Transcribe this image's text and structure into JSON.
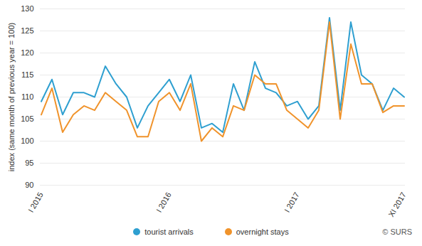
{
  "chart_data": {
    "type": "line",
    "y_label": "index (same month of previous year = 100)",
    "caption": "© SURS",
    "categories": [
      "I 2015",
      null,
      null,
      null,
      null,
      null,
      null,
      null,
      null,
      null,
      null,
      null,
      "I 2016",
      null,
      null,
      null,
      null,
      null,
      null,
      null,
      null,
      null,
      null,
      null,
      "I 2017",
      null,
      null,
      null,
      null,
      null,
      null,
      null,
      null,
      null,
      "XI 2017"
    ],
    "series": [
      {
        "name": "tourist arrivals",
        "color": "#2e9fd0",
        "values": [
          109,
          114,
          106,
          111,
          111,
          110,
          117,
          113,
          110,
          103,
          108,
          111,
          114,
          109,
          115,
          103,
          104,
          102,
          113,
          107,
          118,
          112,
          111,
          108,
          109,
          105,
          108,
          128,
          107,
          127,
          115,
          113,
          107,
          112,
          110
        ]
      },
      {
        "name": "overnight stays",
        "color": "#f0932b",
        "values": [
          106,
          112,
          102,
          106,
          108,
          107,
          111,
          109,
          107,
          101,
          101,
          109,
          111,
          107,
          113,
          100,
          103,
          101,
          108,
          107,
          115,
          113,
          113,
          107,
          105,
          103,
          107,
          127,
          105,
          122,
          113,
          113,
          106.5,
          108,
          108
        ]
      }
    ],
    "ylim": [
      90,
      130
    ],
    "yticks": [
      90,
      95,
      100,
      105,
      110,
      115,
      120,
      125,
      130
    ],
    "grid": true,
    "legend": "bottom"
  }
}
